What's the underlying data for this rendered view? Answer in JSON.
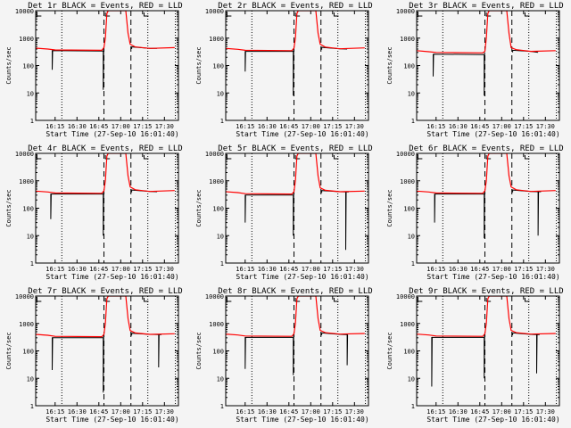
{
  "chart_data": {
    "type": "line",
    "layout": "3x3 grid",
    "ylabel": "Counts/sec",
    "xlabel": "Start Time (27-Sep-10 16:01:40)",
    "yscale": "log",
    "ylim": [
      1,
      10000
    ],
    "xlim_minutes_after_1600": [
      1.67,
      99.6
    ],
    "yticks": [
      {
        "value": 1,
        "label": "1"
      },
      {
        "value": 10,
        "label": "10"
      },
      {
        "value": 100,
        "label": "100"
      },
      {
        "value": 1000,
        "label": "1000"
      },
      {
        "value": 10000,
        "label": "10000"
      }
    ],
    "xticks": [
      {
        "value": 15,
        "label": "16:15"
      },
      {
        "value": 30,
        "label": "16:30"
      },
      {
        "value": 45,
        "label": "16:45"
      },
      {
        "value": 60,
        "label": "17:00"
      },
      {
        "value": 75,
        "label": "17:15"
      },
      {
        "value": 90,
        "label": "17:30"
      }
    ],
    "dashed_lines_minutes": [
      48.5,
      67
    ],
    "dotted_lines_minutes": [
      19.6,
      78.6,
      97.5
    ],
    "markers_minutes": [
      2.5,
      49.5,
      76
    ],
    "series_colors": {
      "events": "#000000",
      "lld": "#ff0000"
    },
    "panels": [
      {
        "title": "Det 1r BLACK = Events, RED = LLD",
        "lld": [
          [
            1.7,
            430
          ],
          [
            10,
            400
          ],
          [
            15,
            370
          ],
          [
            47,
            360
          ],
          [
            48.5,
            450
          ],
          [
            49.5,
            1000
          ],
          [
            50.5,
            8000
          ],
          [
            51.5,
            12000
          ],
          [
            63.5,
            12000
          ],
          [
            65,
            1500
          ],
          [
            66.5,
            600
          ],
          [
            70,
            480
          ],
          [
            80,
            420
          ],
          [
            97,
            450
          ]
        ],
        "events": [
          [
            [
              13,
              360
            ],
            [
              13,
              70
            ],
            [
              13.3,
              350
            ],
            [
              48,
              340
            ],
            [
              48,
              13
            ],
            [
              48.3,
              400
            ]
          ],
          [
            [
              67.5,
              400
            ],
            [
              67.5,
              480
            ],
            [
              80,
              420
            ],
            [
              85,
              420
            ]
          ]
        ]
      },
      {
        "title": "Det 2r BLACK = Events, RED = LLD",
        "lld": [
          [
            1.7,
            420
          ],
          [
            10,
            390
          ],
          [
            15,
            360
          ],
          [
            47,
            350
          ],
          [
            48.5,
            430
          ],
          [
            49.5,
            1000
          ],
          [
            50.5,
            8000
          ],
          [
            51.5,
            12000
          ],
          [
            63.5,
            12000
          ],
          [
            65,
            1500
          ],
          [
            66.5,
            600
          ],
          [
            70,
            470
          ],
          [
            80,
            410
          ],
          [
            97,
            440
          ]
        ],
        "events": [
          [
            [
              15,
              340
            ],
            [
              15,
              60
            ],
            [
              15.3,
              330
            ],
            [
              48,
              330
            ],
            [
              48,
              8
            ],
            [
              48.3,
              380
            ]
          ],
          [
            [
              67.5,
              380
            ],
            [
              67.5,
              460
            ],
            [
              80,
              410
            ],
            [
              85,
              400
            ]
          ]
        ]
      },
      {
        "title": "Det 3r BLACK = Events, RED = LLD",
        "lld": [
          [
            1.7,
            350
          ],
          [
            10,
            320
          ],
          [
            15,
            300
          ],
          [
            47,
            290
          ],
          [
            48.5,
            330
          ],
          [
            49.5,
            1000
          ],
          [
            50.5,
            8000
          ],
          [
            51.5,
            12000
          ],
          [
            63.5,
            12000
          ],
          [
            65,
            1500
          ],
          [
            66.5,
            450
          ],
          [
            70,
            380
          ],
          [
            80,
            330
          ],
          [
            97,
            350
          ]
        ],
        "events": [
          [
            [
              13,
              260
            ],
            [
              13,
              40
            ],
            [
              13.3,
              260
            ],
            [
              48,
              250
            ],
            [
              48,
              8
            ],
            [
              48.3,
              300
            ]
          ],
          [
            [
              67.5,
              300
            ],
            [
              67.5,
              360
            ],
            [
              80,
              330
            ],
            [
              85,
              300
            ]
          ]
        ]
      },
      {
        "title": "Det 4r BLACK = Events, RED = LLD",
        "lld": [
          [
            1.7,
            420
          ],
          [
            10,
            390
          ],
          [
            15,
            360
          ],
          [
            47,
            350
          ],
          [
            48.5,
            430
          ],
          [
            49.5,
            1000
          ],
          [
            50.5,
            8000
          ],
          [
            51.5,
            12000
          ],
          [
            63.5,
            12000
          ],
          [
            65,
            1500
          ],
          [
            66.5,
            600
          ],
          [
            70,
            470
          ],
          [
            80,
            410
          ],
          [
            97,
            440
          ]
        ],
        "events": [
          [
            [
              12,
              340
            ],
            [
              12,
              40
            ],
            [
              12.3,
              330
            ],
            [
              48,
              330
            ],
            [
              48,
              10
            ],
            [
              48.3,
              380
            ]
          ],
          [
            [
              67.5,
              380
            ],
            [
              67.5,
              460
            ],
            [
              80,
              410
            ],
            [
              85,
              400
            ]
          ]
        ]
      },
      {
        "title": "Det 5r BLACK = Events, RED = LLD",
        "lld": [
          [
            1.7,
            400
          ],
          [
            10,
            370
          ],
          [
            15,
            340
          ],
          [
            47,
            330
          ],
          [
            48.5,
            400
          ],
          [
            49.5,
            1000
          ],
          [
            50.5,
            8000
          ],
          [
            51.5,
            12000
          ],
          [
            63.5,
            12000
          ],
          [
            65,
            1500
          ],
          [
            66.5,
            550
          ],
          [
            70,
            450
          ],
          [
            80,
            400
          ],
          [
            97,
            420
          ]
        ],
        "events": [
          [
            [
              15,
              310
            ],
            [
              15,
              30
            ],
            [
              15.3,
              300
            ],
            [
              48,
              300
            ],
            [
              48,
              10
            ],
            [
              48.3,
              360
            ]
          ],
          [
            [
              67.5,
              360
            ],
            [
              67.5,
              440
            ],
            [
              80,
              400
            ],
            [
              84,
              390
            ],
            [
              84,
              3
            ],
            [
              84.3,
              390
            ],
            [
              86,
              390
            ]
          ]
        ]
      },
      {
        "title": "Det 6r BLACK = Events, RED = LLD",
        "lld": [
          [
            1.7,
            420
          ],
          [
            10,
            390
          ],
          [
            15,
            360
          ],
          [
            47,
            350
          ],
          [
            48.5,
            430
          ],
          [
            49.5,
            1000
          ],
          [
            50.5,
            8000
          ],
          [
            51.5,
            12000
          ],
          [
            63.5,
            12000
          ],
          [
            65,
            1500
          ],
          [
            66.5,
            600
          ],
          [
            70,
            470
          ],
          [
            80,
            410
          ],
          [
            97,
            440
          ]
        ],
        "events": [
          [
            [
              14,
              340
            ],
            [
              14,
              30
            ],
            [
              14.3,
              330
            ],
            [
              48,
              330
            ],
            [
              48,
              8
            ],
            [
              48.3,
              380
            ]
          ],
          [
            [
              67.5,
              380
            ],
            [
              67.5,
              460
            ],
            [
              80,
              410
            ],
            [
              85,
              400
            ],
            [
              85,
              10
            ],
            [
              85.3,
              400
            ],
            [
              87,
              400
            ]
          ]
        ]
      },
      {
        "title": "Det 7r BLACK = Events, RED = LLD",
        "lld": [
          [
            1.7,
            400
          ],
          [
            10,
            370
          ],
          [
            15,
            340
          ],
          [
            47,
            330
          ],
          [
            48.5,
            400
          ],
          [
            49.5,
            1000
          ],
          [
            50.5,
            8000
          ],
          [
            51.5,
            12000
          ],
          [
            63.5,
            12000
          ],
          [
            65,
            1500
          ],
          [
            66.5,
            550
          ],
          [
            70,
            450
          ],
          [
            80,
            400
          ],
          [
            97,
            420
          ]
        ],
        "events": [
          [
            [
              13,
              310
            ],
            [
              13,
              20
            ],
            [
              13.3,
              300
            ],
            [
              48,
              300
            ],
            [
              48,
              3
            ],
            [
              48.3,
              360
            ]
          ],
          [
            [
              67.5,
              360
            ],
            [
              67.5,
              440
            ],
            [
              80,
              400
            ],
            [
              86,
              390
            ],
            [
              86,
              25
            ],
            [
              86.3,
              390
            ],
            [
              88,
              390
            ]
          ]
        ]
      },
      {
        "title": "Det 8r BLACK = Events, RED = LLD",
        "lld": [
          [
            1.7,
            410
          ],
          [
            10,
            380
          ],
          [
            15,
            350
          ],
          [
            47,
            340
          ],
          [
            48.5,
            420
          ],
          [
            49.5,
            1000
          ],
          [
            50.5,
            8000
          ],
          [
            51.5,
            12000
          ],
          [
            63.5,
            12000
          ],
          [
            65,
            1500
          ],
          [
            66.5,
            560
          ],
          [
            70,
            460
          ],
          [
            80,
            410
          ],
          [
            97,
            430
          ]
        ],
        "events": [
          [
            [
              15,
              320
            ],
            [
              15,
              22
            ],
            [
              15.3,
              310
            ],
            [
              48,
              310
            ],
            [
              48,
              13
            ],
            [
              48.3,
              370
            ]
          ],
          [
            [
              67.5,
              370
            ],
            [
              67.5,
              450
            ],
            [
              80,
              400
            ],
            [
              85,
              390
            ],
            [
              85,
              30
            ],
            [
              85.3,
              390
            ]
          ]
        ]
      },
      {
        "title": "Det 9r BLACK = Events, RED = LLD",
        "lld": [
          [
            1.7,
            410
          ],
          [
            10,
            380
          ],
          [
            15,
            350
          ],
          [
            47,
            340
          ],
          [
            48.5,
            420
          ],
          [
            49.5,
            1000
          ],
          [
            50.5,
            8000
          ],
          [
            51.5,
            12000
          ],
          [
            63.5,
            12000
          ],
          [
            65,
            1500
          ],
          [
            66.5,
            560
          ],
          [
            70,
            460
          ],
          [
            80,
            410
          ],
          [
            97,
            430
          ]
        ],
        "events": [
          [
            [
              12,
              320
            ],
            [
              12,
              5
            ],
            [
              12.3,
              310
            ],
            [
              48,
              310
            ],
            [
              48,
              10
            ],
            [
              48.3,
              370
            ]
          ],
          [
            [
              67.5,
              370
            ],
            [
              67.5,
              450
            ],
            [
              80,
              400
            ],
            [
              84,
              390
            ],
            [
              84,
              15
            ],
            [
              84.3,
              390
            ],
            [
              86,
              390
            ]
          ]
        ]
      }
    ]
  }
}
